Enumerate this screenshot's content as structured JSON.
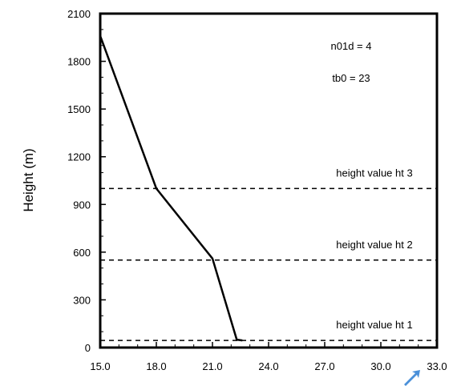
{
  "chart_data": {
    "type": "line",
    "title": "",
    "xlabel": "",
    "ylabel": "Height (m)",
    "xlim": [
      15.0,
      33.0
    ],
    "ylim": [
      0,
      2100
    ],
    "x_ticks": [
      "15.0",
      "18.0",
      "21.0",
      "24.0",
      "27.0",
      "30.0",
      "33.0"
    ],
    "y_ticks": [
      "0",
      "300",
      "600",
      "900",
      "1200",
      "1500",
      "1800",
      "2100"
    ],
    "grid": false,
    "series": [
      {
        "color": "#000000",
        "points": [
          {
            "x": 15.0,
            "y": 1960
          },
          {
            "x": 18.0,
            "y": 1000
          },
          {
            "x": 21.0,
            "y": 560
          },
          {
            "x": 22.3,
            "y": 50
          },
          {
            "x": 22.6,
            "y": 45
          }
        ]
      }
    ],
    "reference_lines": [
      {
        "y": 1000,
        "label": "height value ht 3"
      },
      {
        "y": 550,
        "label": "height value ht 2"
      },
      {
        "y": 45,
        "label": "height value ht 1"
      }
    ],
    "annotations": [
      "n01d = 4",
      "tb0 = 23"
    ]
  },
  "cursor_icon": "arrow-pointer-icon",
  "cursor_color": "#4a90d9"
}
